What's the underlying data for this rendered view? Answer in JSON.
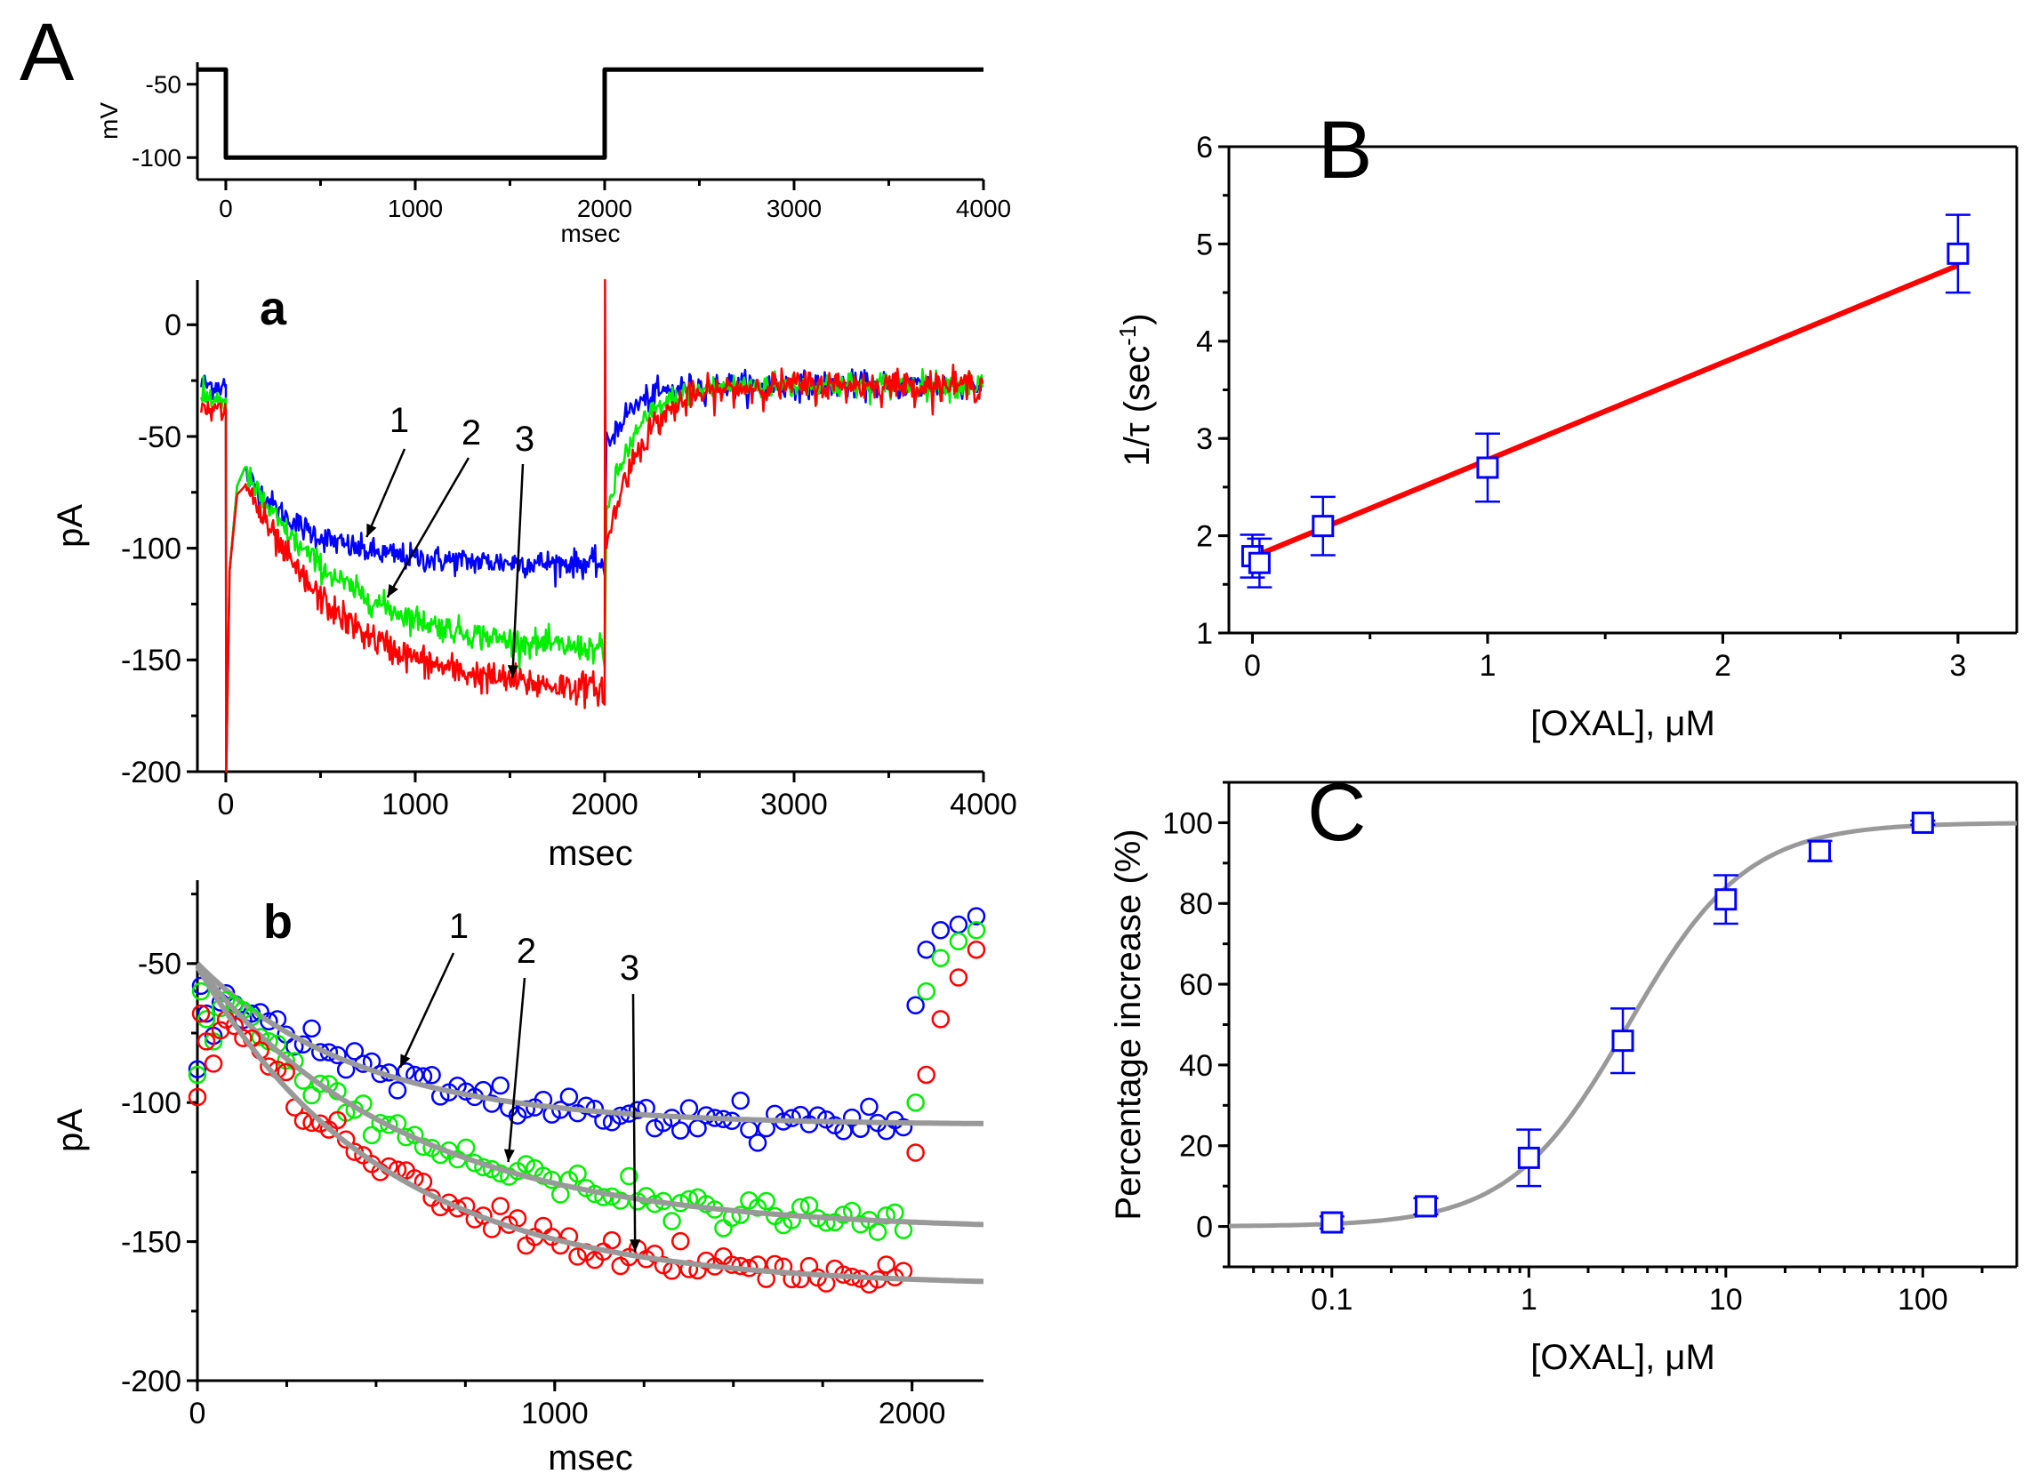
{
  "chart_data": [
    {
      "id": "A-voltage",
      "type": "line",
      "panel_label": "A",
      "title": "",
      "xlabel": "msec",
      "ylabel": "mV",
      "xlim": [
        -150,
        4000
      ],
      "ylim": [
        -115,
        -35
      ],
      "xticks": [
        0,
        1000,
        2000,
        3000,
        4000
      ],
      "xtick_labels": [
        "0",
        "1000",
        "2000",
        "3000",
        "4000"
      ],
      "yticks": [
        -50,
        -100
      ],
      "ytick_labels": [
        "-50",
        "-100"
      ],
      "series": [
        {
          "name": "voltage step",
          "color": "#000000",
          "x": [
            -150,
            0,
            0,
            2000,
            2000,
            4000
          ],
          "y": [
            -40,
            -40,
            -100,
            -100,
            -40,
            -40
          ]
        }
      ]
    },
    {
      "id": "A-a",
      "type": "line",
      "panel_label": "a",
      "title": "",
      "xlabel": "msec",
      "ylabel": "pA",
      "xlim": [
        -150,
        4000
      ],
      "ylim": [
        -200,
        20
      ],
      "xticks": [
        0,
        1000,
        2000,
        3000,
        4000
      ],
      "xtick_labels": [
        "0",
        "1000",
        "2000",
        "3000",
        "4000"
      ],
      "yticks": [
        0,
        -50,
        -100,
        -150,
        -200
      ],
      "ytick_labels": [
        "0",
        "-50",
        "-100",
        "-150",
        "-200"
      ],
      "series": [
        {
          "name": "1",
          "color": "#0000ff",
          "pre": -27,
          "start": -66,
          "plateau": -107,
          "tau": 330,
          "tail_start": -55,
          "tail_end": -27,
          "tail_tau": 140,
          "noise": 3
        },
        {
          "name": "2",
          "color": "#00ee00",
          "pre": -33,
          "start": -66,
          "plateau": -148,
          "tau": 560,
          "tail_start": -85,
          "tail_end": -27,
          "tail_tau": 160,
          "noise": 3
        },
        {
          "name": "3",
          "color": "#ff0000",
          "pre": -39,
          "start": -70,
          "plateau": -165,
          "tau": 500,
          "tail_start": -100,
          "tail_end": -27,
          "tail_tau": 180,
          "noise": 3.5
        }
      ],
      "annotations": [
        {
          "text": "1",
          "x": 800,
          "y": -80
        },
        {
          "text": "2",
          "x": 1050,
          "y": -115
        },
        {
          "text": "3",
          "x": 1480,
          "y": -150
        }
      ]
    },
    {
      "id": "A-b",
      "type": "scatter",
      "panel_label": "b",
      "title": "",
      "xlabel": "msec",
      "ylabel": "pA",
      "xlim": [
        0,
        2200
      ],
      "ylim": [
        -200,
        -20
      ],
      "xticks": [
        0,
        1000,
        2000
      ],
      "xtick_labels": [
        "0",
        "1000",
        "2000"
      ],
      "yticks": [
        -50,
        -100,
        -150,
        -200
      ],
      "ytick_labels": [
        "-50",
        "-100",
        "-150",
        "-200"
      ],
      "series": [
        {
          "name": "1",
          "color": "#0000ff",
          "fit": {
            "y0": -50,
            "amp": -58,
            "tau": 450
          },
          "start": -68,
          "tail": [
            -65,
            -45,
            -38,
            -36,
            -33
          ]
        },
        {
          "name": "2",
          "color": "#00ee00",
          "fit": {
            "y0": -51,
            "amp": -95,
            "tau": 580
          },
          "start": -70,
          "tail": [
            -100,
            -60,
            -48,
            -42,
            -38
          ]
        },
        {
          "name": "3",
          "color": "#ff0000",
          "fit": {
            "y0": -51,
            "amp": -115,
            "tau": 520
          },
          "start": -78,
          "tail": [
            -118,
            -90,
            -70,
            -55,
            -45
          ]
        }
      ],
      "annotations": [
        {
          "text": "1",
          "x": 580,
          "y": -88
        },
        {
          "text": "2",
          "x": 880,
          "y": -122
        },
        {
          "text": "3",
          "x": 1220,
          "y": -155
        }
      ]
    },
    {
      "id": "B",
      "type": "scatter",
      "panel_label": "B",
      "title": "",
      "xlabel": "[OXAL], μM",
      "ylabel": "1/τ (sec",
      "ylabel_sup": "-1",
      "ylabel_close": ")",
      "xlim": [
        -0.1,
        3.25
      ],
      "ylim": [
        1,
        6
      ],
      "xticks": [
        0,
        1,
        2,
        3
      ],
      "xtick_labels": [
        "0",
        "1",
        "2",
        "3"
      ],
      "yticks": [
        1,
        2,
        3,
        4,
        5,
        6
      ],
      "ytick_labels": [
        "1",
        "2",
        "3",
        "4",
        "5",
        "6"
      ],
      "points": [
        {
          "x": 0,
          "y": 1.79,
          "err": 0.22
        },
        {
          "x": 0.03,
          "y": 1.72,
          "err": 0.25
        },
        {
          "x": 0.3,
          "y": 2.1,
          "err": 0.3
        },
        {
          "x": 1,
          "y": 2.7,
          "err": 0.35
        },
        {
          "x": 3,
          "y": 4.9,
          "err": 0.4
        }
      ],
      "fit": {
        "type": "linear",
        "slope": 1.0,
        "intercept": 1.78,
        "x_range": [
          0,
          3
        ]
      },
      "marker_color": "#0000ff",
      "fit_color": "#ff0000"
    },
    {
      "id": "C",
      "type": "scatter",
      "panel_label": "C",
      "title": "",
      "xlabel": "[OXAL], μM",
      "ylabel": "Percentage increase (%)",
      "xscale": "log",
      "xlim": [
        0.03,
        300
      ],
      "ylim": [
        -10,
        110
      ],
      "xticks": [
        0.1,
        1,
        10,
        100
      ],
      "xtick_labels": [
        "0.1",
        "1",
        "10",
        "100"
      ],
      "yticks": [
        0,
        20,
        40,
        60,
        80,
        100
      ],
      "ytick_labels": [
        "0",
        "20",
        "40",
        "60",
        "80",
        "100"
      ],
      "points": [
        {
          "x": 0.1,
          "y": 1,
          "err": 1.5
        },
        {
          "x": 0.3,
          "y": 5,
          "err": 2
        },
        {
          "x": 1,
          "y": 17,
          "err": 7
        },
        {
          "x": 3,
          "y": 46,
          "err": 8
        },
        {
          "x": 10,
          "y": 81,
          "err": 6
        },
        {
          "x": 30,
          "y": 93,
          "err": 2.5
        },
        {
          "x": 100,
          "y": 100,
          "err": 0.5
        }
      ],
      "fit": {
        "type": "hill",
        "ec50": 3.2,
        "n": 1.45,
        "max": 100,
        "x_range": [
          0.03,
          300
        ]
      },
      "marker_color": "#0000ff",
      "fit_color": "#999999"
    }
  ]
}
